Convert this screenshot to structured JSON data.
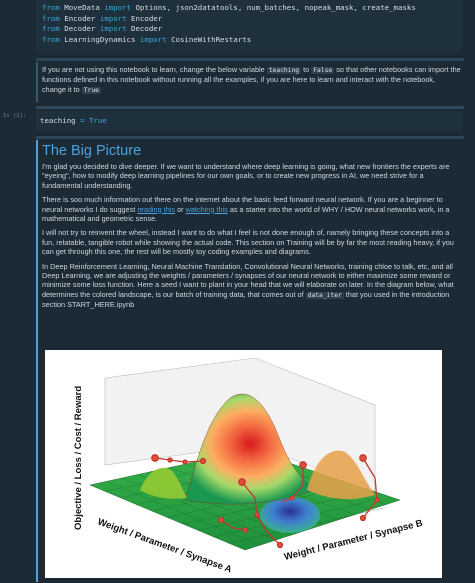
{
  "imports": [
    {
      "kw1": "from",
      "module": "MoveData",
      "kw2": "import",
      "names": "Options, json2datatools, num_batches, nopeak_mask, create_masks"
    },
    {
      "kw1": "from",
      "module": "Encoder",
      "kw2": "import",
      "names": "Encoder"
    },
    {
      "kw1": "from",
      "module": "Decoder",
      "kw2": "import",
      "names": "Decoder"
    },
    {
      "kw1": "from",
      "module": "LearningDynamics",
      "kw2": "import",
      "names": "CosineWithRestarts"
    }
  ],
  "note": {
    "t1": "If you are not using this notebook to learn, change the below variable ",
    "c1": "teaching",
    "t2": " to ",
    "c2": "False",
    "t3": " so that other notebooks can import the functions defined in this notebook without running all the examples, if you are here to learn and interact with the notebook, change it to ",
    "c3": "True"
  },
  "cell2": {
    "prompt": "In [2]:",
    "var": "teaching",
    "op": "=",
    "val": "True"
  },
  "big_picture": {
    "title": "The Big Picture",
    "p1": "I'm glad you decided to dive deeper. If we want to understand where deep learning is going, what new frontiers the experts are \"eyeing\", how to modify deep learning pipelines for our own goals, or to create new progress in AI, we need strive for a fundamental understanding.",
    "p2a": "There is soo much information out there on the internet about the basic feed forward neural network. If you are a beginner to neural networks I do suggest ",
    "link1": "reading this",
    "p2b": " or ",
    "link2": "watching this",
    "p2c": " as a starter into the world of WHY / HOW neural networks work, in a mathematical and geometric sense.",
    "p3": "I will not try to reinvent the wheel, instead I want to do what I feel is not done enough of, namely bringing these concepts into a fun, relatable, tangible robot while showing the actual code. This section on Training will be by far the most reading heavy, if you can get through this one, the rest will be mostly toy coding examples and diagrams.",
    "p4a": "In Deep Reinforcement Learning, Neural Machine Translation, Convolutional Neural Networks, training chloe to talk, etc, and all Deep Learning, we are adjusting the weights / parameters / synapses of our neural network to either maximize some reward or minimize some loss function. Here a seed I want to plant in your head that we will elaborate on later. In the diagram below, what determines the colored landscape, is our batch of training data, that comes out of ",
    "code1": "data_iter",
    "p4b": " that you used in the introduction section START_HERE.ipynb"
  },
  "figure": {
    "zlabel": "Objective / Loss / Cost / Reward",
    "xlabel": "Weight / Parameter / Synapse A",
    "ylabel": "Weight / Parameter / Synapse B"
  },
  "colors": {
    "accent": "#4aa3e0",
    "code_bg": "#1e303c",
    "keyword": "#3aa8d8"
  }
}
